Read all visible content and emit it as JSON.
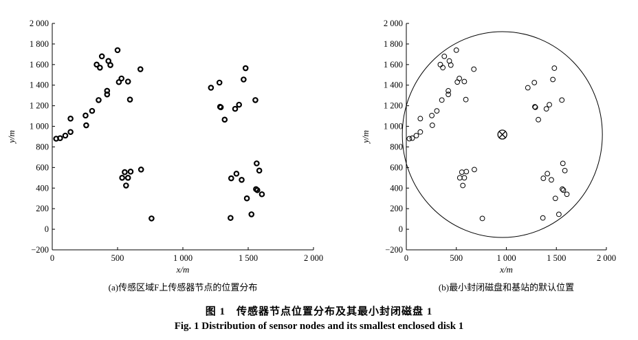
{
  "figure": {
    "caption_cn": "图 1　传感器节点位置分布及其最小封闭磁盘 1",
    "caption_en": "Fig. 1    Distribution of sensor nodes and its smallest enclosed disk 1"
  },
  "chart_data": [
    {
      "type": "scatter",
      "subtitle": "(a)传感区域F上传感器节点的位置分布",
      "xlabel": "x/m",
      "ylabel": "y/m",
      "xlim": [
        0,
        2000
      ],
      "ylim": [
        -200,
        2000
      ],
      "xticks": [
        "0",
        "500",
        "1 000",
        "1 500",
        "2 000"
      ],
      "xtick_values": [
        0,
        500,
        1000,
        1500,
        2000
      ],
      "yticks": [
        "−200",
        "0",
        "200",
        "400",
        "600",
        "800",
        "1 000",
        "1 200",
        "1 400",
        "1 600",
        "1 800",
        "2 000"
      ],
      "ytick_values": [
        -200,
        0,
        200,
        400,
        600,
        800,
        1000,
        1200,
        1400,
        1600,
        1800,
        2000
      ],
      "grid": false,
      "marker": "hollow-circle-bold",
      "points": [
        [
          30,
          880
        ],
        [
          60,
          885
        ],
        [
          100,
          910
        ],
        [
          140,
          945
        ],
        [
          140,
          1075
        ],
        [
          255,
          1105
        ],
        [
          260,
          1010
        ],
        [
          305,
          1150
        ],
        [
          340,
          1600
        ],
        [
          355,
          1255
        ],
        [
          365,
          1570
        ],
        [
          380,
          1680
        ],
        [
          420,
          1310
        ],
        [
          420,
          1345
        ],
        [
          430,
          1635
        ],
        [
          445,
          1595
        ],
        [
          500,
          1740
        ],
        [
          510,
          1430
        ],
        [
          530,
          1465
        ],
        [
          580,
          1435
        ],
        [
          595,
          1260
        ],
        [
          675,
          1555
        ],
        [
          535,
          500
        ],
        [
          555,
          555
        ],
        [
          565,
          425
        ],
        [
          580,
          500
        ],
        [
          600,
          560
        ],
        [
          680,
          580
        ],
        [
          760,
          105
        ],
        [
          1215,
          1375
        ],
        [
          1280,
          1425
        ],
        [
          1285,
          1190
        ],
        [
          1290,
          1185
        ],
        [
          1320,
          1065
        ],
        [
          1400,
          1170
        ],
        [
          1430,
          1210
        ],
        [
          1465,
          1455
        ],
        [
          1480,
          1565
        ],
        [
          1555,
          1255
        ],
        [
          1365,
          110
        ],
        [
          1370,
          495
        ],
        [
          1410,
          540
        ],
        [
          1450,
          480
        ],
        [
          1490,
          300
        ],
        [
          1525,
          145
        ],
        [
          1560,
          390
        ],
        [
          1565,
          640
        ],
        [
          1570,
          380
        ],
        [
          1585,
          570
        ],
        [
          1605,
          340
        ]
      ]
    },
    {
      "type": "scatter",
      "subtitle": "(b)最小封闭磁盘和基站的默认位置",
      "xlabel": "x/m",
      "ylabel": "y/m",
      "xlim": [
        0,
        2000
      ],
      "ylim": [
        -200,
        2000
      ],
      "xticks": [
        "0",
        "500",
        "1 000",
        "1 500",
        "2 000"
      ],
      "xtick_values": [
        0,
        500,
        1000,
        1500,
        2000
      ],
      "yticks": [
        "−200",
        "0",
        "200",
        "400",
        "600",
        "800",
        "1 000",
        "1 200",
        "1 400",
        "1 600",
        "1 800",
        "2 000"
      ],
      "ytick_values": [
        -200,
        0,
        200,
        400,
        600,
        800,
        1000,
        1200,
        1400,
        1600,
        1800,
        2000
      ],
      "grid": false,
      "marker": "hollow-circle",
      "points": [
        [
          30,
          880
        ],
        [
          60,
          885
        ],
        [
          100,
          910
        ],
        [
          140,
          945
        ],
        [
          140,
          1075
        ],
        [
          255,
          1105
        ],
        [
          260,
          1010
        ],
        [
          305,
          1150
        ],
        [
          340,
          1600
        ],
        [
          355,
          1255
        ],
        [
          365,
          1570
        ],
        [
          380,
          1680
        ],
        [
          420,
          1310
        ],
        [
          420,
          1345
        ],
        [
          430,
          1635
        ],
        [
          445,
          1595
        ],
        [
          500,
          1740
        ],
        [
          510,
          1430
        ],
        [
          530,
          1465
        ],
        [
          580,
          1435
        ],
        [
          595,
          1260
        ],
        [
          675,
          1555
        ],
        [
          535,
          500
        ],
        [
          555,
          555
        ],
        [
          565,
          425
        ],
        [
          580,
          500
        ],
        [
          600,
          560
        ],
        [
          680,
          580
        ],
        [
          760,
          105
        ],
        [
          1215,
          1375
        ],
        [
          1280,
          1425
        ],
        [
          1285,
          1190
        ],
        [
          1290,
          1185
        ],
        [
          1320,
          1065
        ],
        [
          1400,
          1170
        ],
        [
          1430,
          1210
        ],
        [
          1465,
          1455
        ],
        [
          1480,
          1565
        ],
        [
          1555,
          1255
        ],
        [
          1365,
          110
        ],
        [
          1370,
          495
        ],
        [
          1410,
          540
        ],
        [
          1450,
          480
        ],
        [
          1490,
          300
        ],
        [
          1525,
          145
        ],
        [
          1560,
          390
        ],
        [
          1565,
          640
        ],
        [
          1570,
          380
        ],
        [
          1585,
          570
        ],
        [
          1605,
          340
        ]
      ],
      "enclosing_disk": {
        "center": [
          960,
          920
        ],
        "radius": 1000
      },
      "base_station": [
        960,
        920
      ]
    }
  ]
}
